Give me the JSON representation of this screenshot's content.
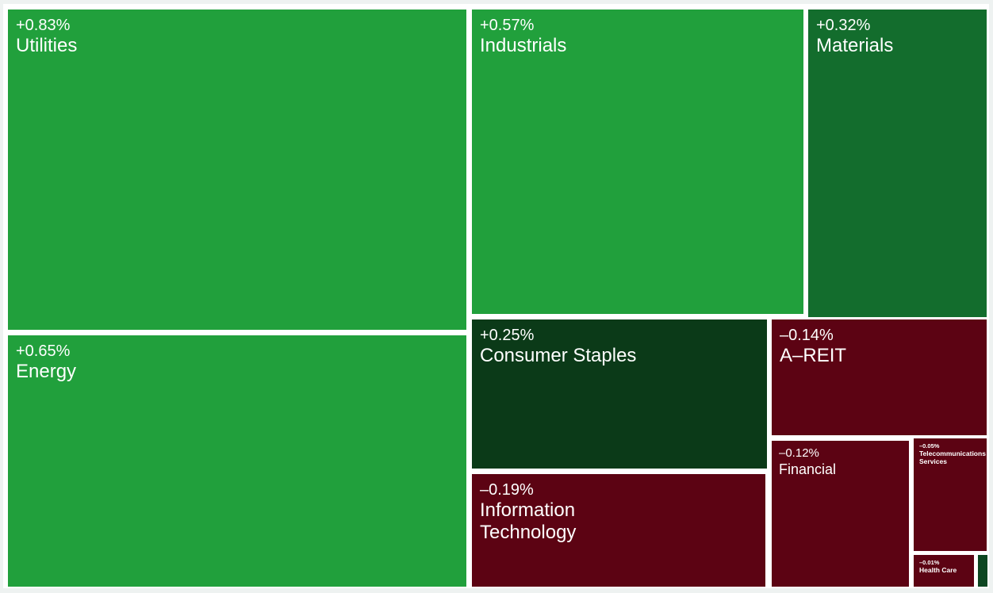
{
  "colors": {
    "positive_strong": "#21A03C",
    "positive_mid": "#136D2D",
    "positive_weak": "#0B3A18",
    "positive_sliver": "#0D4621",
    "negative": "#5C0313",
    "background": "#EEF2F1",
    "gutter": "#FFFFFF",
    "label_text": "#FFFFFF"
  },
  "chart_data": {
    "type": "heatmap",
    "variant": "treemap",
    "legend": "none",
    "value_field": "sector daily change %",
    "series": [
      {
        "name": "Utilities",
        "change_pct": 0.83,
        "label": "+0.83%",
        "color": "#21A03C"
      },
      {
        "name": "Energy",
        "change_pct": 0.65,
        "label": "+0.65%",
        "color": "#21A03C"
      },
      {
        "name": "Industrials",
        "change_pct": 0.57,
        "label": "+0.57%",
        "color": "#21A03C"
      },
      {
        "name": "Materials",
        "change_pct": 0.32,
        "label": "+0.32%",
        "color": "#136D2D"
      },
      {
        "name": "Consumer Staples",
        "change_pct": 0.25,
        "label": "+0.25%",
        "color": "#0B3A18"
      },
      {
        "name": "Information Technology",
        "change_pct": -0.19,
        "label": "–0.19%",
        "color": "#5C0313"
      },
      {
        "name": "A–REIT",
        "change_pct": -0.14,
        "label": "–0.14%",
        "color": "#5C0313"
      },
      {
        "name": "Financial",
        "change_pct": -0.12,
        "label": "–0.12%",
        "color": "#5C0313"
      },
      {
        "name": "Telecommunications Services",
        "change_pct": -0.05,
        "label": "–0.05%",
        "color": "#5C0313"
      },
      {
        "name": "Health Care",
        "change_pct": -0.01,
        "label": "–0.01%",
        "color": "#5C0313"
      },
      {
        "name": "",
        "change_pct": null,
        "label": "",
        "color": "#0D4621",
        "unlabeled": true
      }
    ]
  }
}
